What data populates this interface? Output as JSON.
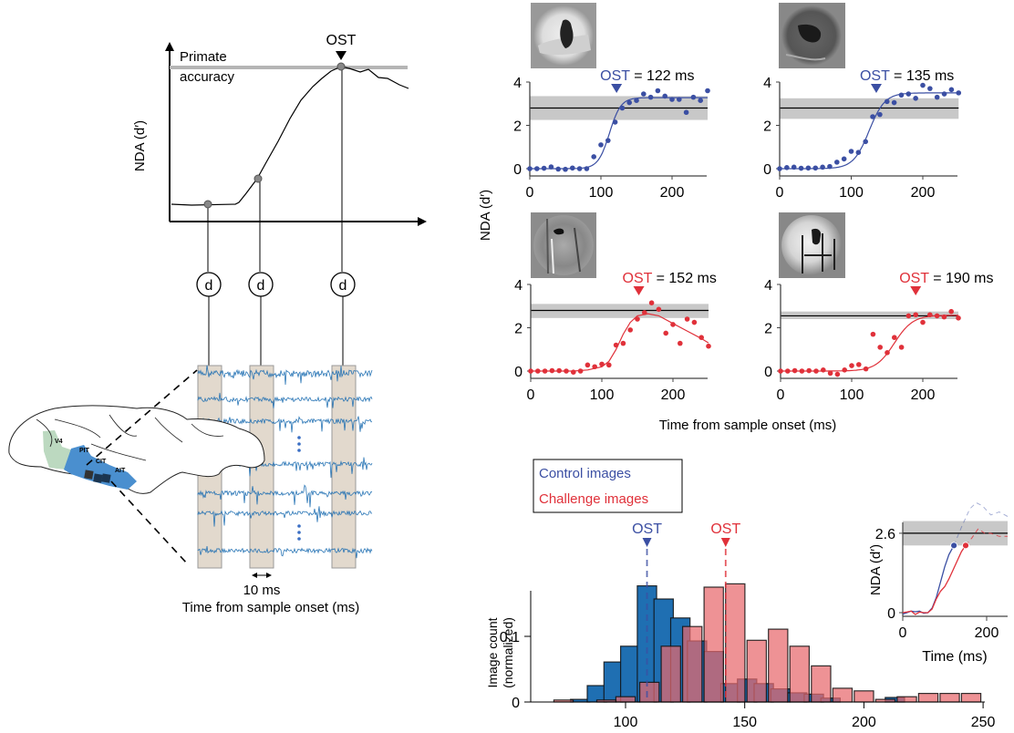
{
  "schematic": {
    "ost_label": "OST",
    "primate_accuracy_line1": "Primate",
    "primate_accuracy_line2": "accuracy",
    "ylabel": "NDA (d′)",
    "decoder_label": "d",
    "brain_regions": [
      "V4",
      "PIT",
      "CIT",
      "AIT"
    ],
    "scale_bar_label": "10 ms",
    "xlabel": "Time from sample onset (ms)"
  },
  "colors": {
    "control": "#3b4fa3",
    "challenge": "#e0313a",
    "control_bar": "#1f6fb2",
    "challenge_bar": "#e8686c",
    "band": "#c8c8c8",
    "trace": "#1f6fb2",
    "window": "#e2d9cd",
    "brain_it": "#4a8fcf",
    "brain_v4": "#bcd9c0"
  },
  "chart_data": [
    {
      "type": "scatter",
      "title": "OST = 122 ms",
      "ost_prefix": "OST",
      "ost_suffix": " = 122 ms",
      "ost_ms": 122,
      "condition": "control",
      "xlim": [
        0,
        250
      ],
      "ylim": [
        0,
        4
      ],
      "xticks": [
        0,
        100,
        200
      ],
      "yticks": [
        0,
        2,
        4
      ],
      "primate_dprime": 2.8,
      "primate_band": [
        2.25,
        3.35
      ],
      "x": [
        0,
        10,
        20,
        30,
        40,
        50,
        60,
        70,
        80,
        90,
        100,
        110,
        120,
        130,
        140,
        150,
        160,
        170,
        180,
        190,
        200,
        210,
        220,
        230,
        240,
        250
      ],
      "y": [
        0,
        0,
        0.02,
        0.08,
        -0.02,
        -0.03,
        0.03,
        0,
        0,
        0.55,
        1.1,
        1.3,
        2.15,
        2.8,
        3.05,
        3.15,
        3.45,
        3.3,
        3.6,
        3.35,
        3.2,
        3.2,
        2.6,
        3.3,
        3.15,
        3.6
      ],
      "fit": {
        "base": 0,
        "top": 3.28,
        "mid": 112,
        "slope": 8
      }
    },
    {
      "type": "scatter",
      "title": "OST = 135 ms",
      "ost_prefix": "OST",
      "ost_suffix": " = 135 ms",
      "ost_ms": 135,
      "condition": "control",
      "xlim": [
        0,
        250
      ],
      "ylim": [
        0,
        4
      ],
      "xticks": [
        0,
        100,
        200
      ],
      "yticks": [
        0,
        2,
        4
      ],
      "primate_dprime": 2.8,
      "primate_band": [
        2.3,
        3.25
      ],
      "x": [
        0,
        10,
        20,
        30,
        40,
        50,
        60,
        70,
        80,
        90,
        100,
        110,
        120,
        130,
        140,
        150,
        160,
        170,
        180,
        190,
        200,
        210,
        220,
        230,
        240,
        250
      ],
      "y": [
        0,
        0.05,
        0.07,
        0.02,
        0.03,
        0.03,
        0.07,
        0.1,
        0.3,
        0.45,
        0.8,
        0.75,
        1.25,
        2.4,
        2.5,
        3.1,
        3.05,
        3.4,
        3.45,
        3.25,
        3.85,
        3.7,
        3.3,
        3.45,
        3.65,
        3.5
      ],
      "fit": {
        "base": 0,
        "top": 3.5,
        "mid": 125,
        "slope": 11
      }
    },
    {
      "type": "scatter",
      "title": "OST = 152 ms",
      "ost_prefix": "OST",
      "ost_suffix": " = 152 ms",
      "ost_ms": 152,
      "condition": "challenge",
      "xlim": [
        0,
        250
      ],
      "ylim": [
        0,
        4
      ],
      "xticks": [
        0,
        100,
        200
      ],
      "yticks": [
        0,
        2,
        4
      ],
      "primate_dprime": 2.8,
      "primate_band": [
        2.45,
        3.1
      ],
      "x": [
        0,
        10,
        20,
        30,
        40,
        50,
        60,
        70,
        80,
        90,
        100,
        110,
        120,
        130,
        140,
        150,
        160,
        170,
        180,
        190,
        200,
        210,
        220,
        230,
        240,
        250
      ],
      "y": [
        0,
        0,
        0,
        0.02,
        0.02,
        0,
        -0.05,
        0,
        0.28,
        0.2,
        0.32,
        0.28,
        1.2,
        1.28,
        1.9,
        2.4,
        2.7,
        3.15,
        2.85,
        1.75,
        2.15,
        1.28,
        2.4,
        2.25,
        1.55,
        1.15
      ],
      "fit_points": [
        [
          0,
          0
        ],
        [
          60,
          0
        ],
        [
          80,
          0.05
        ],
        [
          100,
          0.2
        ],
        [
          110,
          0.45
        ],
        [
          120,
          1.0
        ],
        [
          130,
          1.7
        ],
        [
          140,
          2.25
        ],
        [
          150,
          2.55
        ],
        [
          165,
          2.65
        ],
        [
          180,
          2.55
        ],
        [
          200,
          2.2
        ],
        [
          220,
          1.85
        ],
        [
          240,
          1.5
        ],
        [
          250,
          1.3
        ]
      ]
    },
    {
      "type": "scatter",
      "title": "OST = 190 ms",
      "ost_prefix": "OST",
      "ost_suffix": " = 190 ms",
      "ost_ms": 190,
      "condition": "challenge",
      "xlim": [
        0,
        250
      ],
      "ylim": [
        0,
        4
      ],
      "xticks": [
        0,
        100,
        200
      ],
      "yticks": [
        0,
        2,
        4
      ],
      "primate_dprime": 2.55,
      "primate_band": [
        2.4,
        2.75
      ],
      "x": [
        0,
        10,
        20,
        30,
        40,
        50,
        60,
        70,
        80,
        90,
        100,
        110,
        120,
        130,
        140,
        150,
        160,
        170,
        180,
        190,
        200,
        210,
        220,
        230,
        240,
        250
      ],
      "y": [
        0,
        0,
        0.02,
        0,
        0.02,
        0,
        0.05,
        -0.1,
        -0.15,
        0.05,
        0.25,
        0.3,
        0.1,
        1.7,
        1.1,
        0.85,
        1.55,
        1.1,
        2.55,
        2.6,
        2.25,
        2.6,
        2.55,
        2.5,
        2.75,
        2.45
      ],
      "fit": {
        "base": 0,
        "top": 2.58,
        "mid": 160,
        "slope": 13
      }
    },
    {
      "type": "bar",
      "title": "",
      "xlabel": "",
      "ylabel": "Image count (normalized)",
      "xlim": [
        65,
        250
      ],
      "ylim": [
        0,
        0.19
      ],
      "xticks": [
        100,
        150,
        200,
        250
      ],
      "yticks": [
        0,
        0.1
      ],
      "ytick_labels": [
        "0",
        "0.1"
      ],
      "bin_width": 9,
      "legend": [
        "Control images",
        "Challenge images"
      ],
      "legend_position": "top-left",
      "ost_markers": [
        {
          "label": "OST",
          "x": 109,
          "series": "Control images"
        },
        {
          "label": "OST",
          "x": 142,
          "series": "Challenge images"
        }
      ],
      "series": [
        {
          "name": "Control images",
          "x": [
            81,
            88,
            95,
            102,
            109,
            116,
            123,
            130,
            137,
            144,
            151,
            158,
            165,
            172,
            179,
            186,
            213
          ],
          "values": [
            0.004,
            0.025,
            0.061,
            0.085,
            0.177,
            0.157,
            0.128,
            0.093,
            0.077,
            0.028,
            0.035,
            0.028,
            0.02,
            0.014,
            0.012,
            0.006,
            0.007
          ]
        },
        {
          "name": "Challenge images",
          "x": [
            74,
            92,
            100,
            110,
            119,
            128,
            137,
            146,
            155,
            164,
            173,
            182,
            191,
            200,
            209,
            218,
            227,
            236,
            245
          ],
          "values": [
            0.003,
            0.003,
            0.008,
            0.03,
            0.085,
            0.115,
            0.175,
            0.18,
            0.094,
            0.111,
            0.085,
            0.055,
            0.021,
            0.017,
            0.004,
            0.008,
            0.013,
            0.013,
            0.013
          ]
        }
      ]
    },
    {
      "type": "line",
      "title": "",
      "xlabel": "Time (ms)",
      "ylabel": "NDA (d′)",
      "xlim": [
        0,
        250
      ],
      "ylim": [
        0,
        3.1
      ],
      "xticks": [
        0,
        200
      ],
      "yticks": [
        0,
        2.6
      ],
      "primate_dprime": 2.6,
      "primate_band": [
        2.2,
        3.0
      ],
      "series": [
        {
          "name": "Control images",
          "x": [
            0,
            10,
            20,
            30,
            40,
            50,
            60,
            70,
            80,
            90,
            100,
            110,
            122
          ],
          "values": [
            -0.05,
            0,
            0.05,
            0.03,
            0.05,
            -0.02,
            0,
            0.15,
            0.5,
            1.0,
            1.5,
            1.9,
            2.2
          ],
          "ost_ms": 122,
          "dashed_after": {
            "x": [
              122,
              140,
              160,
              175,
              190,
              210,
              230,
              250
            ],
            "values": [
              2.2,
              2.8,
              3.4,
              3.6,
              3.5,
              3.2,
              3.3,
              3.15
            ]
          }
        },
        {
          "name": "Challenge images",
          "x": [
            0,
            10,
            20,
            30,
            40,
            50,
            60,
            70,
            80,
            90,
            100,
            110,
            120,
            130,
            140,
            150
          ],
          "values": [
            0,
            0.02,
            0.05,
            -0.06,
            0.02,
            0,
            0,
            0.12,
            0.45,
            0.7,
            0.85,
            1.1,
            1.4,
            1.7,
            2.0,
            2.2
          ],
          "ost_ms": 150,
          "dashed_after": {
            "x": [
              150,
              165,
              180,
              195,
              210,
              230,
              250
            ],
            "values": [
              2.2,
              2.45,
              2.75,
              2.6,
              2.6,
              2.5,
              2.5
            ]
          }
        }
      ]
    }
  ],
  "shared": {
    "ylabel": "NDA (d′)",
    "xlabel": "Time from sample onset (ms)"
  }
}
